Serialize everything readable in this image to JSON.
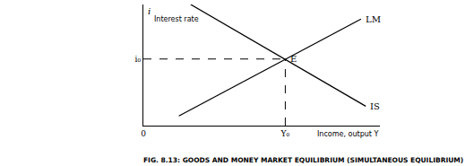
{
  "chart_data": {
    "type": "line",
    "title": "FIG. 8.13: GOODS AND MONEY MARKET EQUILIBRIUM (SIMULTANEOUS EQUILIBRIUM)",
    "x_label": "Income, output Y",
    "y_label": "Interest rate",
    "y_symbol": "i",
    "color": "#000000",
    "grid": false,
    "xlim": [
      0,
      10
    ],
    "ylim": [
      0,
      10
    ],
    "xticks": [
      0,
      {
        "value": 6,
        "label": "Y₀"
      }
    ],
    "yticks": [
      {
        "value": 5.5,
        "label": "i₀"
      }
    ],
    "series": [
      {
        "name": "LM",
        "x": [
          1.5,
          9.2
        ],
        "values": [
          0.8,
          8.8
        ]
      },
      {
        "name": "IS",
        "x": [
          2.0,
          9.4
        ],
        "values": [
          10,
          1.6
        ]
      }
    ],
    "equilibrium": {
      "x": 6,
      "y": 5.5,
      "label": "E"
    }
  }
}
